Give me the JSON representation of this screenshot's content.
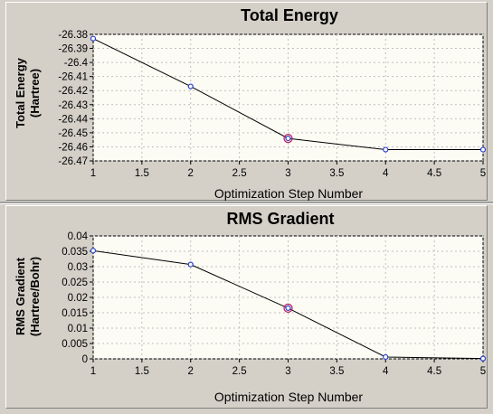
{
  "colors": {
    "background": "#d4d0c8",
    "plot_background": "#fcfcf4",
    "line": "#000000",
    "point": "#2a3fcf",
    "highlight": "#c02060"
  },
  "chart_data": [
    {
      "type": "line",
      "title": "Total Energy",
      "xlabel": "Optimization Step Number",
      "ylabel": [
        "Total Energy",
        "(Hartree)"
      ],
      "x": [
        1,
        2,
        3,
        4,
        5
      ],
      "y": [
        -26.383,
        -26.417,
        -26.454,
        -26.462,
        -26.462
      ],
      "xlim": [
        1,
        5
      ],
      "ylim": [
        -26.47,
        -26.38
      ],
      "xticks": [
        "1",
        "1.5",
        "2",
        "2.5",
        "3",
        "3.5",
        "4",
        "4.5",
        "5"
      ],
      "yticks": [
        "-26.38",
        "-26.39",
        "-26.4",
        "-26.41",
        "-26.42",
        "-26.43",
        "-26.44",
        "-26.45",
        "-26.46",
        "-26.47"
      ],
      "highlight_x": 3,
      "grid": true
    },
    {
      "type": "line",
      "title": "RMS Gradient",
      "xlabel": "Optimization Step Number",
      "ylabel": [
        "RMS Gradient",
        "(Hartree/Bohr)"
      ],
      "x": [
        1,
        2,
        3,
        4,
        5
      ],
      "y": [
        0.0352,
        0.0307,
        0.0165,
        0.0006,
        0.0001
      ],
      "xlim": [
        1,
        5
      ],
      "ylim": [
        0,
        0.04
      ],
      "xticks": [
        "1",
        "1.5",
        "2",
        "2.5",
        "3",
        "3.5",
        "4",
        "4.5",
        "5"
      ],
      "yticks": [
        "0",
        "0.005",
        "0.01",
        "0.015",
        "0.02",
        "0.025",
        "0.03",
        "0.035",
        "0.04"
      ],
      "highlight_x": 3,
      "grid": true
    }
  ]
}
